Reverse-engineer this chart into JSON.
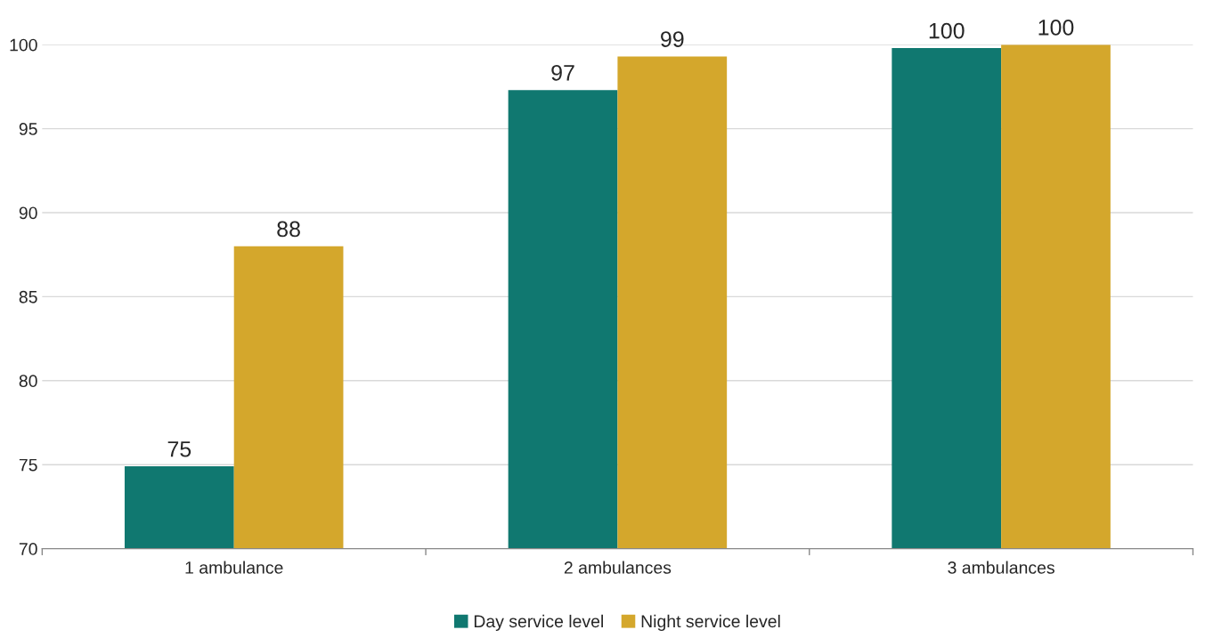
{
  "chart_data": {
    "type": "bar",
    "categories": [
      "1 ambulance",
      "2 ambulances",
      "3 ambulances"
    ],
    "series": [
      {
        "name": "Day service level",
        "color": "#107870",
        "values": [
          74.9,
          97.3,
          99.8
        ],
        "value_labels": [
          "75",
          "97",
          "100"
        ]
      },
      {
        "name": "Night service level",
        "color": "#d4a72c",
        "values": [
          88.0,
          99.3,
          100
        ],
        "value_labels": [
          "88",
          "99",
          "100"
        ]
      }
    ],
    "ylim": [
      70,
      100
    ],
    "yticks": [
      70,
      75,
      80,
      85,
      90,
      95,
      100
    ],
    "grid": "y",
    "legend": "bottom"
  }
}
